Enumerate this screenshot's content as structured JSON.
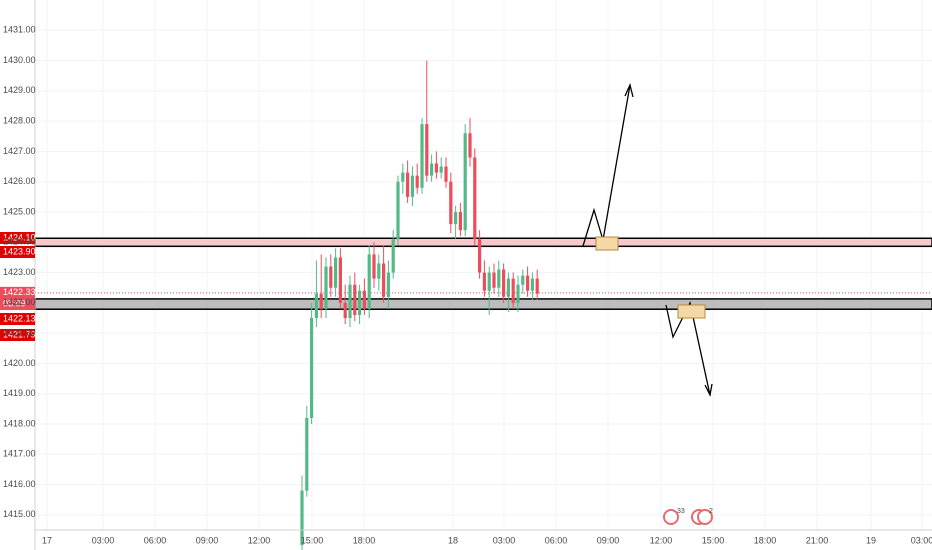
{
  "chart_data": {
    "type": "candlestick",
    "open": [
      1414.0,
      1415.8,
      1418.2,
      1421.5,
      1422.3,
      1421.8,
      1423.2,
      1422.5,
      1423.5,
      1422.0,
      1421.5,
      1422.6,
      1421.6,
      1422.4,
      1421.8,
      1423.6,
      1422.8,
      1423.3,
      1422.2,
      1423.0,
      1424.1,
      1426.0,
      1426.3,
      1425.5,
      1426.2,
      1425.8,
      1427.9,
      1426.2,
      1426.6,
      1426.3,
      1426.5,
      1426.0,
      1424.6,
      1425.0,
      1424.4,
      1427.6,
      1426.8,
      1424.1,
      1423.0,
      1422.4,
      1423.0,
      1422.5,
      1423.1,
      1422.2,
      1422.8,
      1422.0,
      1422.6,
      1422.9,
      1422.4,
      1422.8
    ],
    "high": [
      1416.3,
      1418.6,
      1422.0,
      1423.4,
      1423.6,
      1423.5,
      1423.6,
      1423.8,
      1423.8,
      1422.6,
      1422.9,
      1423.0,
      1422.6,
      1422.8,
      1423.9,
      1424.0,
      1423.6,
      1423.9,
      1423.4,
      1424.4,
      1426.2,
      1426.6,
      1426.7,
      1426.5,
      1426.6,
      1428.1,
      1430.0,
      1426.9,
      1427.0,
      1426.8,
      1426.8,
      1426.3,
      1425.2,
      1425.3,
      1427.9,
      1428.1,
      1427.1,
      1424.4,
      1423.4,
      1423.2,
      1423.3,
      1423.4,
      1423.3,
      1423.0,
      1423.0,
      1422.9,
      1423.1,
      1423.2,
      1423.0,
      1423.1
    ],
    "low": [
      1413.8,
      1415.6,
      1418.0,
      1421.2,
      1421.5,
      1421.5,
      1422.2,
      1422.2,
      1421.8,
      1421.3,
      1421.2,
      1421.4,
      1421.3,
      1421.6,
      1421.5,
      1422.5,
      1422.4,
      1422.0,
      1421.8,
      1422.8,
      1423.9,
      1425.6,
      1425.3,
      1425.2,
      1425.6,
      1425.6,
      1426.0,
      1426.0,
      1426.1,
      1426.1,
      1425.8,
      1424.3,
      1424.1,
      1424.2,
      1424.2,
      1426.5,
      1423.9,
      1422.8,
      1422.2,
      1421.6,
      1422.3,
      1422.2,
      1422.0,
      1421.7,
      1421.8,
      1421.7,
      1422.3,
      1422.2,
      1422.1,
      1422.1
    ],
    "close": [
      1415.8,
      1418.2,
      1421.5,
      1422.3,
      1421.8,
      1423.2,
      1422.5,
      1423.5,
      1422.0,
      1421.5,
      1422.6,
      1421.6,
      1422.4,
      1421.8,
      1423.6,
      1422.8,
      1423.3,
      1422.2,
      1423.0,
      1424.1,
      1426.0,
      1426.3,
      1425.5,
      1426.2,
      1425.8,
      1427.9,
      1426.2,
      1426.6,
      1426.3,
      1426.5,
      1426.0,
      1424.6,
      1425.0,
      1424.4,
      1427.6,
      1426.8,
      1424.1,
      1423.0,
      1422.4,
      1423.0,
      1422.5,
      1423.1,
      1422.2,
      1422.8,
      1422.0,
      1422.6,
      1422.9,
      1422.4,
      1422.8,
      1422.3
    ],
    "up_color": "#53b987",
    "down_color": "#eb4d5c",
    "ylim": [
      1414.5,
      1432.0
    ],
    "yticks": [
      {
        "value": 1415,
        "label": "1415.00"
      },
      {
        "value": 1416,
        "label": "1416.00"
      },
      {
        "value": 1417,
        "label": "1417.00"
      },
      {
        "value": 1418,
        "label": "1418.00"
      },
      {
        "value": 1419,
        "label": "1419.00"
      },
      {
        "value": 1420,
        "label": "1420.00"
      },
      {
        "value": 1421,
        "label": "1421.00"
      },
      {
        "value": 1422,
        "label": "1422.00"
      },
      {
        "value": 1423,
        "label": "1423.00"
      },
      {
        "value": 1424,
        "label": "1424.00"
      },
      {
        "value": 1425,
        "label": "1425.00"
      },
      {
        "value": 1426,
        "label": "1426.00"
      },
      {
        "value": 1427,
        "label": "1427.00"
      },
      {
        "value": 1428,
        "label": "1428.00"
      },
      {
        "value": 1429,
        "label": "1429.00"
      },
      {
        "value": 1430,
        "label": "1430.00"
      },
      {
        "value": 1431,
        "label": "1431.00"
      }
    ],
    "xticks": [
      "17",
      "03:00",
      "06:00",
      "09:00",
      "12:00",
      "15:00",
      "18:00",
      "18",
      "03:00",
      "06:00",
      "09:00",
      "12:00",
      "15:00",
      "18:00",
      "21:00",
      "19",
      "03:00"
    ],
    "resistance_zone": [
      {
        "value": 1424.1,
        "label": "1424.10"
      },
      {
        "value": 1423.9,
        "label": "1423.90"
      }
    ],
    "support_zone": [
      {
        "value": 1422.13,
        "label": "1422.13"
      },
      {
        "value": 1421.79,
        "label": "1421.79"
      }
    ],
    "last_price": {
      "value": 1422.33,
      "label": "1422.33"
    },
    "countdown": "05:09",
    "event_badges": [
      "33",
      "2"
    ],
    "grid": true
  }
}
